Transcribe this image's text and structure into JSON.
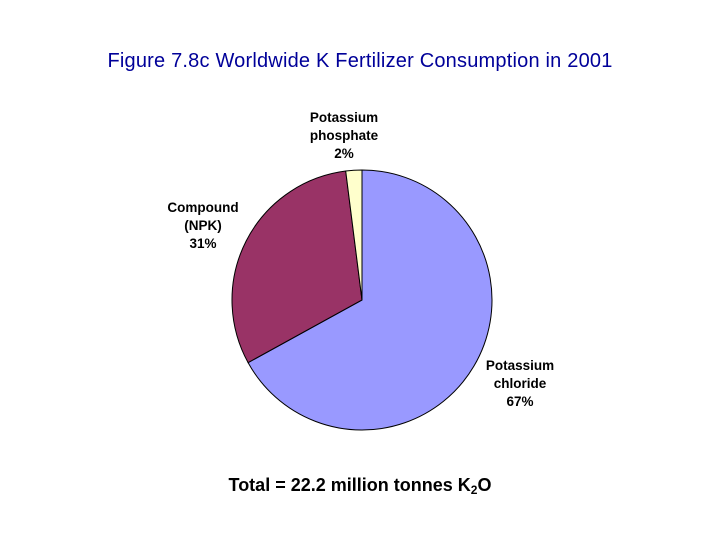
{
  "title": "Figure 7.8c Worldwide K Fertilizer Consumption in 2001",
  "footer": {
    "prefix": "Total = 22.2 million tonnes K",
    "subscript": "2",
    "suffix": "O"
  },
  "chart_data": {
    "type": "pie",
    "start_angle_deg": 0,
    "direction": "clockwise",
    "slices": [
      {
        "label": [
          "Potassium",
          "chloride",
          "67%"
        ],
        "value": 67,
        "color": "#9999ff"
      },
      {
        "label": [
          "Compound",
          "(NPK)",
          "31%"
        ],
        "value": 31,
        "color": "#993366"
      },
      {
        "label": [
          "Potassium",
          "phosphate",
          "2%"
        ],
        "value": 2,
        "color": "#ffffcc"
      }
    ]
  }
}
